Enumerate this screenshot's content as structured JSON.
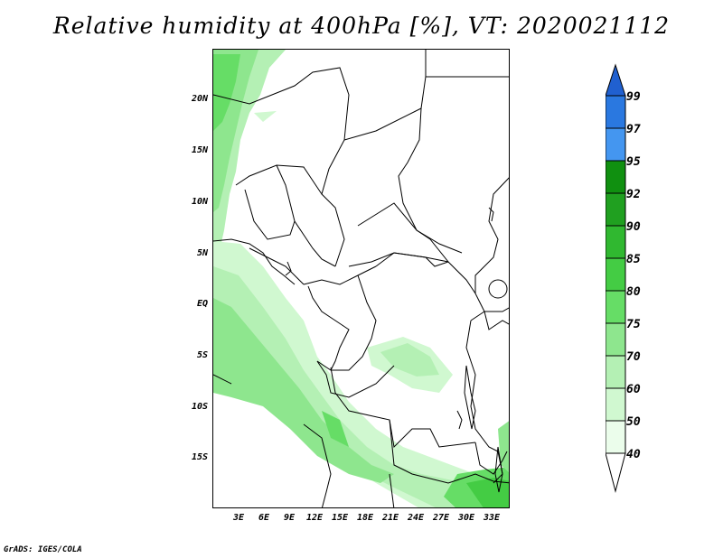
{
  "title": "Relative humidity at 400hPa [%], VT: 2020021112",
  "credit": "GrADS: IGES/COLA",
  "map": {
    "lat_labels": [
      "20N",
      "15N",
      "10N",
      "5N",
      "EQ",
      "5S",
      "10S",
      "15S"
    ],
    "lon_labels": [
      "3E",
      "6E",
      "9E",
      "12E",
      "15E",
      "18E",
      "21E",
      "24E",
      "27E",
      "30E",
      "33E"
    ]
  },
  "colorbar": {
    "levels": [
      "99",
      "97",
      "95",
      "92",
      "90",
      "85",
      "80",
      "75",
      "70",
      "60",
      "50",
      "40"
    ],
    "colors": {
      "above_99": "#2060d0",
      "97_99": "#2a78e0",
      "95_97": "#4496f0",
      "92_95": "#109010",
      "90_92": "#20a020",
      "85_90": "#30b830",
      "80_85": "#44cc44",
      "75_80": "#66dd66",
      "70_75": "#8ee68e",
      "60_70": "#b4f0b4",
      "50_60": "#d0f8d0",
      "40_50": "#ebfdeb",
      "below_40": "#ffffff"
    }
  }
}
